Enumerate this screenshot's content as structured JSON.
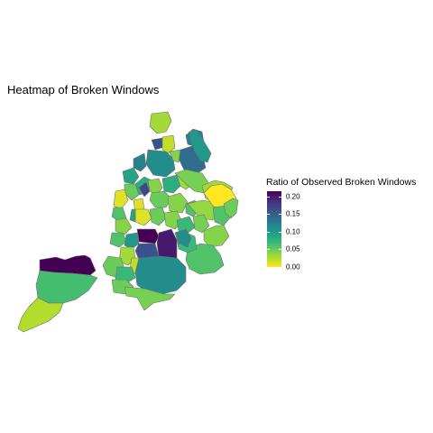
{
  "title": "Heatmap of Broken Windows",
  "legend": {
    "title": "Ratio of Observed Broken Windows",
    "ticks": [
      "0.20",
      "0.15",
      "0.10",
      "0.05",
      "0.00"
    ],
    "tick_values": [
      0.2,
      0.15,
      0.1,
      0.05,
      0.0
    ],
    "min": 0.0,
    "max": 0.215,
    "palette": [
      "#fde725",
      "#b5de2b",
      "#6ece58",
      "#35b779",
      "#1f9e89",
      "#26828e",
      "#31688e",
      "#3e4989",
      "#482878",
      "#440154"
    ]
  },
  "regions": [
    {
      "name": "region-staten-north",
      "value": 0.215
    },
    {
      "name": "region-staten-mid",
      "value": 0.065
    },
    {
      "name": "region-staten-south",
      "value": 0.025
    },
    {
      "name": "region-bronx-1",
      "value": 0.03
    },
    {
      "name": "region-bronx-2",
      "value": 0.16
    },
    {
      "name": "region-bronx-3",
      "value": 0.02
    },
    {
      "name": "region-bronx-4",
      "value": 0.12
    },
    {
      "name": "region-bronx-5",
      "value": 0.14
    },
    {
      "name": "region-bronx-6",
      "value": 0.11
    },
    {
      "name": "region-bronx-7",
      "value": 0.04
    },
    {
      "name": "region-bronx-8",
      "value": 0.12
    },
    {
      "name": "region-bronx-9",
      "value": 0.09
    },
    {
      "name": "region-manhattan-1",
      "value": 0.08
    },
    {
      "name": "region-manhattan-2",
      "value": 0.17
    },
    {
      "name": "region-manhattan-3",
      "value": 0.05
    },
    {
      "name": "region-manhattan-4",
      "value": 0.01
    },
    {
      "name": "region-manhattan-5",
      "value": 0.06
    },
    {
      "name": "region-manhattan-6",
      "value": 0.01
    },
    {
      "name": "region-manhattan-7",
      "value": 0.04
    },
    {
      "name": "region-queens-1",
      "value": 0.1
    },
    {
      "name": "region-queens-2",
      "value": 0.08
    },
    {
      "name": "region-queens-3",
      "value": 0.03
    },
    {
      "name": "region-queens-4",
      "value": 0.045
    },
    {
      "name": "region-queens-5",
      "value": 0.03
    },
    {
      "name": "region-queens-6",
      "value": 0.05
    },
    {
      "name": "region-queens-7",
      "value": 0.04
    },
    {
      "name": "region-queens-8",
      "value": 0.06
    },
    {
      "name": "region-queens-9",
      "value": 0.035
    },
    {
      "name": "region-queens-10",
      "value": 0.0
    },
    {
      "name": "region-queens-11",
      "value": 0.01
    },
    {
      "name": "region-queens-12",
      "value": 0.05
    },
    {
      "name": "region-queens-13",
      "value": 0.09
    },
    {
      "name": "region-queens-14",
      "value": 0.04
    },
    {
      "name": "region-queens-15",
      "value": 0.07
    },
    {
      "name": "region-queens-16",
      "value": 0.045
    },
    {
      "name": "region-queens-17",
      "value": 0.06
    },
    {
      "name": "region-queens-18",
      "value": 0.04
    },
    {
      "name": "region-queens-19",
      "value": 0.05
    },
    {
      "name": "region-queens-20",
      "value": 0.06
    },
    {
      "name": "region-brooklyn-1",
      "value": 0.04
    },
    {
      "name": "region-brooklyn-2",
      "value": 0.06
    },
    {
      "name": "region-brooklyn-3",
      "value": 0.1
    },
    {
      "name": "region-brooklyn-4",
      "value": 0.215
    },
    {
      "name": "region-brooklyn-5",
      "value": 0.2
    },
    {
      "name": "region-brooklyn-6",
      "value": 0.16
    },
    {
      "name": "region-brooklyn-7",
      "value": 0.03
    },
    {
      "name": "region-brooklyn-8",
      "value": 0.02
    },
    {
      "name": "region-brooklyn-9",
      "value": 0.05
    },
    {
      "name": "region-brooklyn-10",
      "value": 0.07
    },
    {
      "name": "region-brooklyn-11",
      "value": 0.05
    },
    {
      "name": "region-brooklyn-12",
      "value": 0.11
    },
    {
      "name": "region-brooklyn-13",
      "value": 0.07
    },
    {
      "name": "region-brooklyn-14",
      "value": 0.045
    },
    {
      "name": "region-brooklyn-15",
      "value": 0.11
    }
  ]
}
